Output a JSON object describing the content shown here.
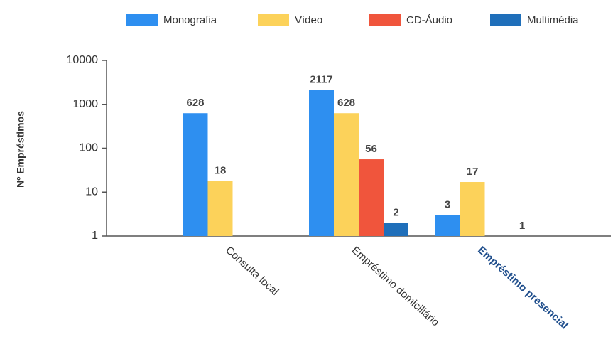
{
  "chart_data": {
    "type": "bar",
    "log_scale": true,
    "grid": false,
    "legend": "top",
    "y_label": "Nº Empréstimos",
    "categories": [
      "Consulta local",
      "Empréstimo domiciliário",
      "Empréstimo presencial"
    ],
    "series": [
      {
        "name": "Monografia",
        "color": "#2e8ff0",
        "values": [
          628,
          2117,
          3
        ]
      },
      {
        "name": "Vídeo",
        "color": "#fcd25a",
        "values": [
          18,
          628,
          17
        ]
      },
      {
        "name": "CD-Áudio",
        "color": "#f0553c",
        "values": [
          null,
          56,
          null
        ]
      },
      {
        "name": "Multimédia",
        "color": "#1f6fba",
        "values": [
          null,
          2,
          1
        ]
      }
    ],
    "ylim": [
      1,
      10000
    ],
    "yticks": [
      1,
      10,
      100,
      1000,
      10000
    ]
  }
}
